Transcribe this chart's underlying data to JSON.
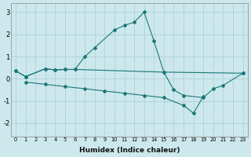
{
  "background_color": "#cce8ec",
  "grid_color": "#aaccd4",
  "line_color": "#1a7878",
  "xlabel": "Humidex (Indice chaleur)",
  "ylim": [
    -2.6,
    3.4
  ],
  "xlim": [
    -0.5,
    23.5
  ],
  "curve1_x": [
    0,
    1,
    3,
    4,
    5,
    6,
    7,
    8,
    10,
    11,
    12,
    13,
    14,
    15,
    23
  ],
  "curve1_y": [
    0.35,
    0.1,
    0.45,
    0.4,
    0.42,
    0.42,
    1.0,
    1.4,
    2.2,
    2.4,
    2.55,
    3.0,
    1.7,
    0.3,
    0.25
  ],
  "curve2_x": [
    0,
    1,
    3,
    4,
    5,
    6,
    15,
    16,
    17,
    19,
    20,
    21,
    23
  ],
  "curve2_y": [
    0.35,
    0.1,
    0.45,
    0.4,
    0.42,
    0.42,
    0.3,
    -0.5,
    -0.75,
    -0.85,
    -0.45,
    -0.3,
    0.25
  ],
  "curve3_x": [
    1,
    3,
    5,
    7,
    9,
    11,
    13,
    15,
    17,
    18,
    19
  ],
  "curve3_y": [
    -0.15,
    -0.25,
    -0.35,
    -0.45,
    -0.55,
    -0.65,
    -0.75,
    -0.85,
    -1.2,
    -1.55,
    -0.8
  ]
}
